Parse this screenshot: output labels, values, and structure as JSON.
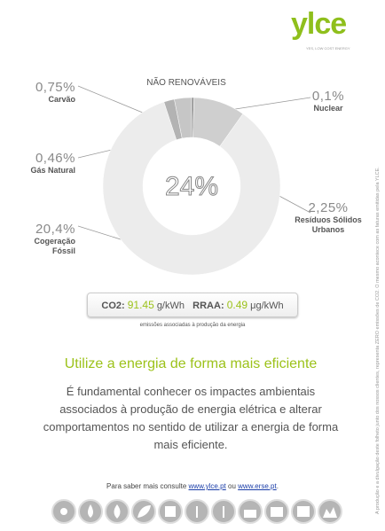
{
  "logo": "ylce",
  "tagline": "YES, LOW COST ENERGY",
  "chart_data": {
    "type": "donut",
    "title": "NÃO RENOVÁVEIS",
    "center_label": "24%",
    "categories": [
      "Nuclear",
      "Resíduos Sólidos Urbanos",
      "Cogeração Fóssil",
      "Gás Natural",
      "Carvão"
    ],
    "values": [
      0.1,
      2.25,
      20.4,
      0.46,
      0.75
    ],
    "value_labels": [
      "0,1%",
      "2,25%",
      "20,4%",
      "0,46%",
      "0,75%"
    ],
    "colors": [
      "#8c8c8c",
      "#cfcfcf",
      "#ececec",
      "#b3b3b3",
      "#c6c6c6"
    ]
  },
  "emissions": {
    "co2_label": "CO2:",
    "co2_value": "91.45",
    "co2_unit": "g/kWh",
    "rraa_label": "RRAA:",
    "rraa_value": "0.49",
    "rraa_unit": "μg/kWh",
    "caption": "emissões associadas à produção da energia"
  },
  "heading": "Utilize a energia de forma mais eficiente",
  "paragraph": "É fundamental conhecer os impactes ambientais associados à produção de energia elétrica e alterar comportamentos no sentido de utilizar a energia de forma mais eficiente.",
  "footer": {
    "text": "Para saber mais consulte",
    "link1": "www.ylce.pt",
    "joiner": "ou",
    "link2": "www.erse.pt",
    "end": "."
  },
  "side_note": "A produção e a divulgação deste folheto junto dos nossos clientes, representa ZERO emissões de CO2. O mesmo acontece com as faturas emitidas pela YLCE."
}
